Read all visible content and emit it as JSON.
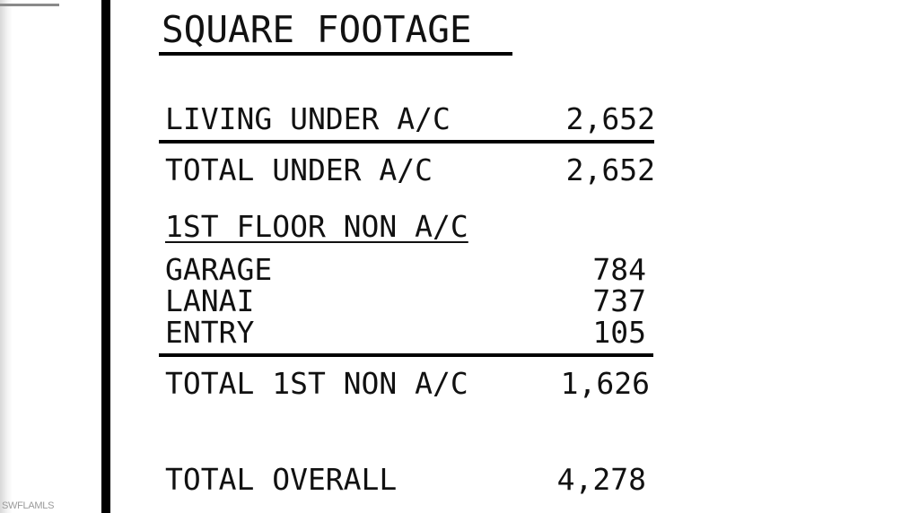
{
  "title": "SQUARE FOOTAGE",
  "under_ac": {
    "rows": [
      {
        "label": "LIVING UNDER A/C",
        "value": "2,652"
      }
    ],
    "total": {
      "label": "TOTAL UNDER A/C",
      "value": "2,652"
    }
  },
  "first_floor_non_ac": {
    "heading": "1ST FLOOR NON A/C",
    "rows": [
      {
        "label": "GARAGE",
        "value": "784"
      },
      {
        "label": "LANAI",
        "value": "737"
      },
      {
        "label": "ENTRY",
        "value": "105"
      }
    ],
    "total": {
      "label": "TOTAL 1ST NON A/C",
      "value": "1,626"
    }
  },
  "overall": {
    "label": "TOTAL OVERALL",
    "value": "4,278"
  },
  "watermark": "SWFLAMLS"
}
